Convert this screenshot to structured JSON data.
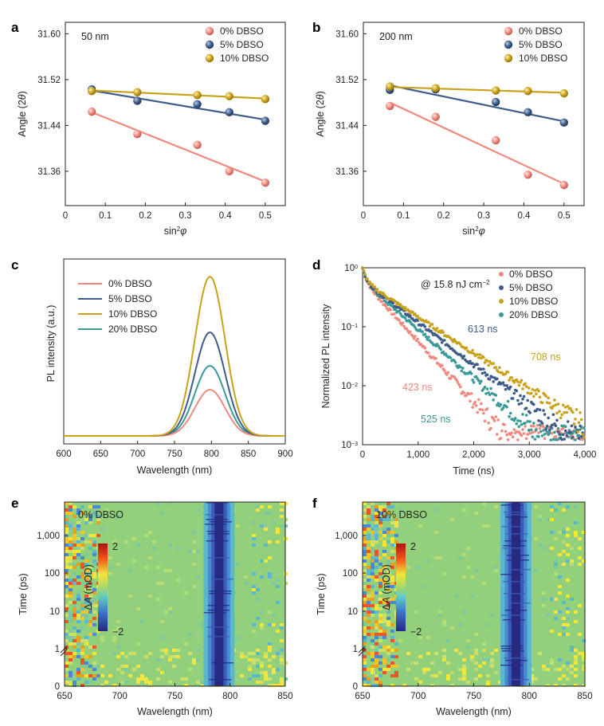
{
  "panel_labels": [
    "a",
    "b",
    "c",
    "d",
    "e",
    "f"
  ],
  "colors": {
    "dbso0": "#f08a7e",
    "dbso5": "#3e5c8a",
    "dbso10": "#c9a21c",
    "dbso20": "#3a9a97",
    "axis": "#231f20"
  },
  "chart_data": [
    {
      "panel": "a",
      "type": "scatter",
      "annotation": "50 nm",
      "xlabel": "sin²φ",
      "ylabel": "Angle (2θ)",
      "xlim": [
        0,
        0.55
      ],
      "ylim": [
        31.3,
        31.62
      ],
      "xticks": [
        "0",
        "0.1",
        "0.2",
        "0.3",
        "0.4",
        "0.5"
      ],
      "yticks": [
        "31.36",
        "31.44",
        "31.52",
        "31.60"
      ],
      "legend": "top-right",
      "series": [
        {
          "name": "0% DBSO",
          "x": [
            0.066,
            0.18,
            0.33,
            0.41,
            0.5
          ],
          "y": [
            31.464,
            31.425,
            31.406,
            31.36,
            31.34
          ],
          "fit": [
            [
              0.066,
              31.463
            ],
            [
              0.5,
              31.342
            ]
          ]
        },
        {
          "name": "5% DBSO",
          "x": [
            0.066,
            0.18,
            0.33,
            0.41,
            0.5
          ],
          "y": [
            31.503,
            31.483,
            31.477,
            31.463,
            31.448
          ],
          "fit": [
            [
              0.066,
              31.501
            ],
            [
              0.5,
              31.45
            ]
          ]
        },
        {
          "name": "10% DBSO",
          "x": [
            0.066,
            0.18,
            0.33,
            0.41,
            0.5
          ],
          "y": [
            31.5,
            31.498,
            31.493,
            31.491,
            31.486
          ],
          "fit": [
            [
              0.066,
              31.501
            ],
            [
              0.5,
              31.487
            ]
          ]
        }
      ]
    },
    {
      "panel": "b",
      "type": "scatter",
      "annotation": "200 nm",
      "xlabel": "sin²φ",
      "ylabel": "Angle (2θ)",
      "xlim": [
        0,
        0.55
      ],
      "ylim": [
        31.3,
        31.62
      ],
      "xticks": [
        "0",
        "0.1",
        "0.2",
        "0.3",
        "0.4",
        "0.5"
      ],
      "yticks": [
        "31.36",
        "31.44",
        "31.52",
        "31.60"
      ],
      "legend": "top-right",
      "series": [
        {
          "name": "0% DBSO",
          "x": [
            0.066,
            0.18,
            0.33,
            0.41,
            0.5
          ],
          "y": [
            31.474,
            31.455,
            31.414,
            31.354,
            31.336
          ],
          "fit": [
            [
              0.066,
              31.48
            ],
            [
              0.5,
              31.338
            ]
          ]
        },
        {
          "name": "5% DBSO",
          "x": [
            0.066,
            0.18,
            0.33,
            0.41,
            0.5
          ],
          "y": [
            31.502,
            31.503,
            31.481,
            31.463,
            31.445
          ],
          "fit": [
            [
              0.066,
              31.51
            ],
            [
              0.5,
              31.447
            ]
          ]
        },
        {
          "name": "10% DBSO",
          "x": [
            0.066,
            0.18,
            0.33,
            0.41,
            0.5
          ],
          "y": [
            31.508,
            31.505,
            31.501,
            31.5,
            31.496
          ],
          "fit": [
            [
              0.066,
              31.507
            ],
            [
              0.5,
              31.497
            ]
          ]
        }
      ]
    },
    {
      "panel": "c",
      "type": "line",
      "xlabel": "Wavelength (nm)",
      "ylabel": "PL intensity (a.u.)",
      "xlim": [
        600,
        900
      ],
      "xticks": [
        "600",
        "650",
        "700",
        "750",
        "800",
        "850",
        "900"
      ],
      "legend": "top-left",
      "peak_nm": 798,
      "fwhm_nm": 48,
      "series": [
        {
          "name": "0% DBSO",
          "peak": 0.29
        },
        {
          "name": "5% DBSO",
          "peak": 0.65
        },
        {
          "name": "10% DBSO",
          "peak": 1.0
        },
        {
          "name": "20% DBSO",
          "peak": 0.44
        }
      ]
    },
    {
      "panel": "d",
      "type": "scatter",
      "annotation": "@ 15.8 nJ cm⁻²",
      "xlabel": "Time (ns)",
      "ylabel": "Normalized PL intensity",
      "xlim": [
        0,
        4000
      ],
      "ylim": [
        0.001,
        1
      ],
      "yscale": "log",
      "xticks": [
        "0",
        "1,000",
        "2,000",
        "3,000",
        "4,000"
      ],
      "yticks": [
        "10⁰",
        "10⁻¹",
        "10⁻²",
        "10⁻³"
      ],
      "legend": "top-right",
      "series": [
        {
          "name": "0% DBSO",
          "lifetime_ns": 423,
          "label": "423 ns"
        },
        {
          "name": "5% DBSO",
          "lifetime_ns": 613,
          "label": "613 ns"
        },
        {
          "name": "10% DBSO",
          "lifetime_ns": 708,
          "label": "708 ns"
        },
        {
          "name": "20% DBSO",
          "lifetime_ns": 525,
          "label": "525 ns"
        }
      ]
    },
    {
      "panel": "e",
      "type": "heatmap",
      "annotation": "0% DBSO",
      "xlabel": "Wavelength (nm)",
      "ylabel": "Time (ps)",
      "xlim": [
        650,
        850
      ],
      "xticks": [
        "650",
        "700",
        "750",
        "800",
        "850"
      ],
      "yticks": [
        "0",
        "1",
        "10",
        "100",
        "1,000"
      ],
      "colorbar": {
        "label": "ΔA (mOD)",
        "max": "2",
        "min": "−2"
      },
      "bleach_center_nm": 790
    },
    {
      "panel": "f",
      "type": "heatmap",
      "annotation": "10% DBSO",
      "xlabel": "Wavelength (nm)",
      "ylabel": "Time (ps)",
      "xlim": [
        650,
        850
      ],
      "xticks": [
        "650",
        "700",
        "750",
        "800",
        "850"
      ],
      "yticks": [
        "0",
        "1",
        "10",
        "100",
        "1,000"
      ],
      "colorbar": {
        "label": "ΔA (mOD)",
        "max": "2",
        "min": "−2"
      },
      "bleach_center_nm": 788
    }
  ]
}
